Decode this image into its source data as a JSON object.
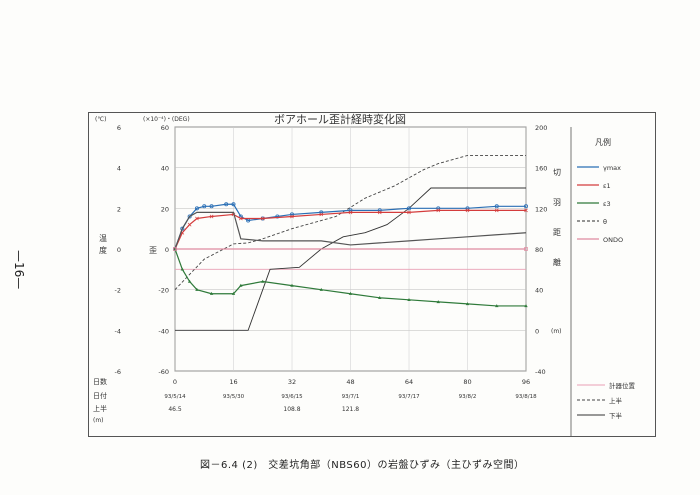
{
  "page_number": "—16—",
  "caption": "図－6.4 (2)　交差坑角部（NBS60）の岩盤ひずみ（主ひずみ空間）",
  "chart_data": {
    "type": "line",
    "title": "ボアホール歪計経時変化図",
    "x_ticks": [
      0,
      16,
      32,
      48,
      64,
      80,
      96
    ],
    "x_dates": [
      "93/5/14",
      "93/5/30",
      "93/6/15",
      "93/7/1",
      "93/7/17",
      "93/8/2",
      "93/8/18"
    ],
    "upper_half_m": [
      "46.5",
      "",
      "108.8",
      "121.8",
      "",
      "",
      ""
    ],
    "row_labels": {
      "days": "日数",
      "date": "日付",
      "upper": "上半",
      "unit": "(m)"
    },
    "axes": {
      "left_temp_label": "温度",
      "left_temp_unit": "(℃)",
      "left_temp_ticks": [
        "6",
        "4",
        "2",
        "0",
        "-2",
        "-4",
        "-6"
      ],
      "strain_label": "歪",
      "strain_unit": "(×10⁻⁴)・(DEG)",
      "strain_ticks": [
        "60",
        "40",
        "20",
        "0",
        "-20",
        "-40",
        "-60"
      ],
      "right_label": "切羽距離",
      "right_unit": "(m)",
      "right_ticks": [
        "200",
        "160",
        "120",
        "80",
        "40",
        "0",
        "-40"
      ],
      "xlim": [
        0,
        96
      ],
      "ylim": [
        -60,
        60
      ]
    },
    "legend_title": "凡例",
    "series": [
      {
        "name": "γmax",
        "color": "#2a6fb5",
        "marker": "circle",
        "x": [
          0,
          2,
          4,
          6,
          8,
          10,
          14,
          16,
          18,
          20,
          24,
          28,
          32,
          40,
          48,
          56,
          64,
          72,
          80,
          88,
          96
        ],
        "y": [
          0,
          10,
          16,
          20,
          21,
          21,
          22,
          22,
          16,
          14,
          15,
          16,
          17,
          18,
          19,
          19,
          20,
          20,
          20,
          21,
          21
        ]
      },
      {
        "name": "ε1",
        "color": "#d43c3c",
        "marker": "x",
        "x": [
          0,
          2,
          4,
          6,
          10,
          16,
          18,
          24,
          32,
          40,
          48,
          56,
          64,
          72,
          80,
          88,
          96
        ],
        "y": [
          0,
          8,
          12,
          15,
          16,
          17,
          15,
          15,
          16,
          17,
          18,
          18,
          18,
          19,
          19,
          19,
          19
        ]
      },
      {
        "name": "ε3",
        "color": "#2f7a3a",
        "marker": "triangle",
        "x": [
          0,
          2,
          4,
          6,
          10,
          16,
          18,
          24,
          32,
          40,
          48,
          56,
          64,
          72,
          80,
          88,
          96
        ],
        "y": [
          0,
          -10,
          -16,
          -20,
          -22,
          -22,
          -18,
          -16,
          -18,
          -20,
          -22,
          -24,
          -25,
          -26,
          -27,
          -28,
          -28
        ]
      },
      {
        "name": "θ",
        "color": "#555555",
        "marker": "dash",
        "x": [
          0,
          2,
          4,
          6,
          10,
          16,
          18,
          24,
          32,
          40,
          48,
          56,
          64,
          72,
          80,
          88,
          96
        ],
        "y": [
          0,
          10,
          16,
          18,
          18,
          18,
          5,
          4,
          4,
          4,
          2,
          3,
          4,
          5,
          6,
          7,
          8
        ]
      },
      {
        "name": "ONDO",
        "color": "#e08aa0",
        "marker": "square",
        "x": [
          0,
          96
        ],
        "y": [
          0,
          0
        ]
      }
    ],
    "face_lines": {
      "legend": [
        "計器位置",
        "上半",
        "下半"
      ],
      "position": {
        "color": "#e9a0b4",
        "x": [
          0,
          96
        ],
        "y": [
          60,
          60
        ]
      },
      "upper": {
        "color": "#444444",
        "dash": "3,2",
        "x": [
          0,
          8,
          16,
          20,
          24,
          28,
          32,
          36,
          40,
          44,
          48,
          52,
          56,
          60,
          64,
          68,
          72,
          76,
          80,
          96
        ],
        "y": [
          40,
          70,
          85,
          86,
          90,
          95,
          100,
          104,
          108,
          112,
          121,
          130,
          136,
          142,
          150,
          158,
          164,
          168,
          172,
          172
        ]
      },
      "lower": {
        "color": "#333333",
        "x": [
          0,
          10,
          20,
          26,
          34,
          40,
          46,
          52,
          58,
          64,
          70,
          76,
          84,
          96
        ],
        "y": [
          0,
          0,
          0,
          60,
          62,
          80,
          92,
          96,
          104,
          120,
          140,
          140,
          140,
          140
        ]
      }
    }
  }
}
